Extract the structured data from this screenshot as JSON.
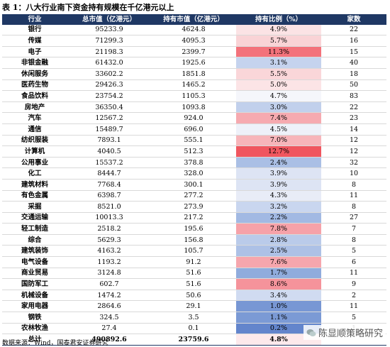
{
  "title": "表 1：八大行业南下资金持有规模在千亿港元以上",
  "table": {
    "header": [
      "行业",
      "总市值（亿港元）",
      "持有市值（亿港元）",
      "持有比例（%）",
      "家数"
    ],
    "rows": [
      [
        "银行",
        "95233.9",
        "4624.8",
        "4.9%",
        "22"
      ],
      [
        "传媒",
        "71299.3",
        "4095.3",
        "5.7%",
        "16"
      ],
      [
        "电子",
        "21198.3",
        "2399.7",
        "11.3%",
        "15"
      ],
      [
        "非银金融",
        "61432.0",
        "1925.6",
        "3.1%",
        "40"
      ],
      [
        "休闲服务",
        "33602.2",
        "1851.8",
        "5.5%",
        "18"
      ],
      [
        "医药生物",
        "29426.3",
        "1465.2",
        "5.0%",
        "50"
      ],
      [
        "食品饮料",
        "23754.2",
        "1105.3",
        "4.7%",
        "83"
      ],
      [
        "房地产",
        "36350.4",
        "1093.8",
        "3.0%",
        "22"
      ],
      [
        "汽车",
        "12567.2",
        "924.0",
        "7.4%",
        "23"
      ],
      [
        "通信",
        "15489.7",
        "696.0",
        "4.5%",
        "14"
      ],
      [
        "纺织服装",
        "7893.1",
        "555.1",
        "7.0%",
        "12"
      ],
      [
        "计算机",
        "4040.5",
        "512.3",
        "12.7%",
        "12"
      ],
      [
        "公用事业",
        "15537.2",
        "378.8",
        "2.4%",
        "32"
      ],
      [
        "化工",
        "8444.7",
        "328.0",
        "3.9%",
        "10"
      ],
      [
        "建筑材料",
        "7768.4",
        "300.1",
        "3.9%",
        "8"
      ],
      [
        "有色金属",
        "6398.7",
        "277.2",
        "4.3%",
        "11"
      ],
      [
        "采掘",
        "8521.0",
        "273.9",
        "3.2%",
        "8"
      ],
      [
        "交通运输",
        "10013.3",
        "217.2",
        "2.2%",
        "27"
      ],
      [
        "轻工制造",
        "2518.2",
        "195.6",
        "7.8%",
        "7"
      ],
      [
        "综合",
        "5629.3",
        "156.8",
        "2.8%",
        "8"
      ],
      [
        "建筑装饰",
        "4163.2",
        "105.7",
        "2.5%",
        "5"
      ],
      [
        "电气设备",
        "1193.2",
        "91.2",
        "7.6%",
        "6"
      ],
      [
        "商业贸易",
        "3124.8",
        "51.6",
        "1.7%",
        "11"
      ],
      [
        "国防军工",
        "602.7",
        "51.6",
        "8.6%",
        "9"
      ],
      [
        "机械设备",
        "1474.2",
        "50.6",
        "3.4%",
        "2"
      ],
      [
        "家用电器",
        "2864.6",
        "29.1",
        "1.0%",
        "11"
      ],
      [
        "钢铁",
        "324.5",
        "3.5",
        "1.1%",
        "5"
      ],
      [
        "农林牧渔",
        "27.4",
        "0.1",
        "0.2%",
        "1"
      ]
    ],
    "ratio_colors": [
      "#fbe3e5",
      "#f9d3d6",
      "#f3727b",
      "#c5d3ee",
      "#fad6d9",
      "#fce4e6",
      "#f5f6fb",
      "#c1d0ec",
      "#f6aab0",
      "#eef1f9",
      "#f7b5ba",
      "#f0565f",
      "#aabfe5",
      "#dde4f4",
      "#dde4f4",
      "#e8ecf7",
      "#c9d6ef",
      "#a2b9e3",
      "#f6a2a9",
      "#bacbea",
      "#adc1e6",
      "#f6a6ad",
      "#90acdd",
      "#f5939b",
      "#d0dbf1",
      "#7897d4",
      "#7b9ad5",
      "#6385cc"
    ],
    "total": [
      "总计",
      "490892.6",
      "23759.6",
      "4.8%"
    ],
    "total_color": "#fde9eb"
  },
  "source": "数据来源：Wind，国泰君安证券研究",
  "watermark": "陈显顺策略研究"
}
